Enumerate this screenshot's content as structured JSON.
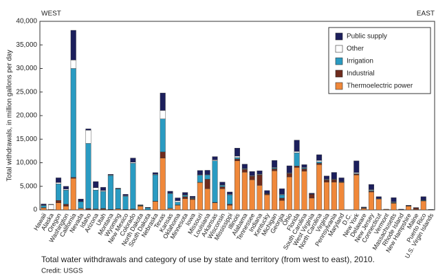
{
  "chart_data": {
    "type": "stacked-bar",
    "ylabel": "Total withdrawals, in million gallons per day",
    "left_label": "WEST",
    "right_label": "EAST",
    "caption": "Total water withdrawals and category of use by state and territory (from west to east), 2010.",
    "credit": "Credit: USGS",
    "ylim": [
      0,
      40000
    ],
    "yticks": [
      0,
      {
        "value": 5000,
        "label": "5,000"
      },
      {
        "value": 10000,
        "label": "10,000"
      },
      {
        "value": 15000,
        "label": "15,000"
      },
      {
        "value": 20000,
        "label": "20,000"
      },
      {
        "value": 25000,
        "label": "25,000"
      },
      {
        "value": 30000,
        "label": "30,000"
      },
      {
        "value": 35000,
        "label": "35,000"
      },
      {
        "value": 40000,
        "label": "40,000"
      }
    ],
    "legend": "top-right",
    "categories": [
      "Hawaii",
      "Alaska",
      "Oregon",
      "Washington",
      "California",
      "Nevada",
      "Idaho",
      "Arizona",
      "Utah",
      "Montana",
      "Wyoming",
      "New Mexico",
      "Colorado",
      "North Dakota",
      "South Dakota",
      "Nebraska",
      "Texas",
      "Kansas",
      "Oklahoma",
      "Minnesota",
      "Iowa",
      "Missouri",
      "Louisiana",
      "Arkansas",
      "Wisconsin",
      "Mississippi",
      "Illinois",
      "Alabama",
      "Tennessee",
      "Indiana",
      "Kentucky",
      "Michigan",
      "Georgia",
      "Ohio",
      "Florida",
      "South Carolina",
      "West Virginia",
      "North Carolina",
      "Virginia",
      "Pennsylvania",
      "Maryland",
      "D.C.",
      "New York",
      "Delaware",
      "New Jersey",
      "Connecticut",
      "Vermont",
      "Massachusetts",
      "Rhode Island",
      "New Hampshire",
      "Maine",
      "Puerto Rico",
      "U.S. Virgin Islands"
    ],
    "series": [
      {
        "name": "Public supply",
        "color": "#1c1f5c",
        "values": [
          250,
          80,
          1000,
          600,
          6300,
          500,
          300,
          1300,
          700,
          150,
          100,
          300,
          900,
          80,
          100,
          350,
          3700,
          400,
          600,
          500,
          300,
          900,
          900,
          700,
          600,
          500,
          1700,
          900,
          900,
          700,
          600,
          1500,
          1200,
          1500,
          2400,
          600,
          200,
          1200,
          700,
          1400,
          800,
          10,
          2500,
          100,
          1100,
          400,
          50,
          900,
          100,
          100,
          100,
          700,
          50
        ]
      },
      {
        "name": "Other",
        "color": "#ffffff",
        "values": [
          100,
          1000,
          300,
          200,
          1800,
          50,
          2800,
          500,
          200,
          100,
          50,
          100,
          200,
          50,
          30,
          100,
          1800,
          100,
          300,
          100,
          100,
          100,
          100,
          200,
          100,
          100,
          300,
          100,
          100,
          100,
          50,
          100,
          100,
          100,
          300,
          100,
          50,
          300,
          100,
          100,
          50,
          0,
          200,
          0,
          150,
          0,
          0,
          100,
          0,
          20,
          0,
          50,
          0
        ]
      },
      {
        "name": "Irrigation",
        "color": "#2a9bc2",
        "values": [
          400,
          0,
          3500,
          3000,
          23100,
          1400,
          13800,
          4000,
          3600,
          7200,
          4200,
          2800,
          9700,
          100,
          400,
          5600,
          7000,
          3100,
          600,
          300,
          100,
          1500,
          900,
          8800,
          300,
          2000,
          300,
          100,
          50,
          100,
          50,
          200,
          700,
          50,
          2800,
          200,
          0,
          300,
          100,
          50,
          50,
          0,
          100,
          100,
          150,
          100,
          0,
          100,
          0,
          0,
          0,
          100,
          0
        ]
      },
      {
        "name": "Industrial",
        "color": "#6e2b1d",
        "values": [
          100,
          0,
          500,
          400,
          200,
          50,
          300,
          100,
          200,
          50,
          50,
          50,
          100,
          50,
          20,
          50,
          1300,
          50,
          50,
          400,
          200,
          50,
          2000,
          100,
          400,
          200,
          400,
          600,
          700,
          2200,
          200,
          400,
          500,
          700,
          300,
          500,
          800,
          300,
          400,
          500,
          100,
          0,
          200,
          100,
          200,
          0,
          0,
          100,
          0,
          50,
          300,
          50,
          0
        ]
      },
      {
        "name": "Thermoelectric power",
        "color": "#f0883a",
        "values": [
          400,
          100,
          1500,
          800,
          6700,
          300,
          0,
          100,
          100,
          50,
          200,
          50,
          100,
          800,
          0,
          1800,
          11000,
          300,
          1000,
          2400,
          2200,
          5800,
          4500,
          1500,
          4500,
          1000,
          10400,
          8000,
          6400,
          5200,
          3200,
          8300,
          2000,
          7000,
          9000,
          8200,
          2500,
          9600,
          5900,
          5900,
          5800,
          0,
          7400,
          300,
          3800,
          2300,
          100,
          1400,
          50,
          800,
          100,
          1900,
          50
        ]
      }
    ]
  }
}
